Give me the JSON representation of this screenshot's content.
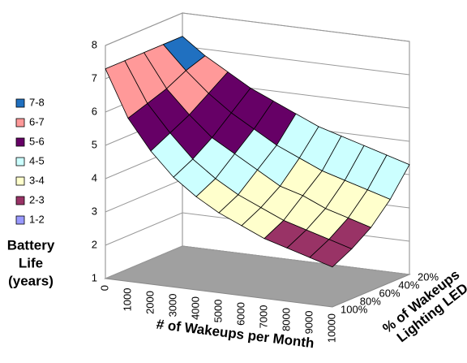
{
  "chart_data": {
    "type": "surface",
    "x_label": "# of Wakeups per Month",
    "depth_label": [
      "% of Wakeups",
      "Lighting LED"
    ],
    "y_label": [
      "Battery",
      "Life",
      "(years)"
    ],
    "categories": [
      "0",
      "1000",
      "2000",
      "3000",
      "4000",
      "5000",
      "6000",
      "7000",
      "8000",
      "9000",
      "10000"
    ],
    "series": [
      {
        "name": "20%",
        "values": [
          7.3,
          6.8,
          6.4,
          6.0,
          5.7,
          5.4,
          5.1,
          4.9,
          4.7,
          4.5,
          4.3
        ]
      },
      {
        "name": "40%",
        "values": [
          7.3,
          6.6,
          6.0,
          5.5,
          5.1,
          4.7,
          4.4,
          4.1,
          3.9,
          3.7,
          3.5
        ]
      },
      {
        "name": "60%",
        "values": [
          7.3,
          6.3,
          5.6,
          5.0,
          4.6,
          4.2,
          3.8,
          3.6,
          3.3,
          3.1,
          2.9
        ]
      },
      {
        "name": "80%",
        "values": [
          7.3,
          6.1,
          5.3,
          4.6,
          4.1,
          3.7,
          3.4,
          3.1,
          2.9,
          2.7,
          2.5
        ]
      },
      {
        "name": "100%",
        "values": [
          7.3,
          5.9,
          5.0,
          4.3,
          3.8,
          3.4,
          3.1,
          2.8,
          2.6,
          2.4,
          2.2
        ]
      }
    ],
    "ylim": [
      1,
      8
    ],
    "yticks": [
      1,
      2,
      3,
      4,
      5,
      6,
      7,
      8
    ],
    "grid": true,
    "bands": [
      {
        "name": "7-8",
        "range": [
          7,
          8
        ],
        "color": "#2070c0"
      },
      {
        "name": "6-7",
        "range": [
          6,
          7
        ],
        "color": "#ff9999"
      },
      {
        "name": "5-6",
        "range": [
          5,
          6
        ],
        "color": "#660066"
      },
      {
        "name": "4-5",
        "range": [
          4,
          5
        ],
        "color": "#ccffff"
      },
      {
        "name": "3-4",
        "range": [
          3,
          4
        ],
        "color": "#ffffcc"
      },
      {
        "name": "2-3",
        "range": [
          2,
          3
        ],
        "color": "#993366"
      },
      {
        "name": "1-2",
        "range": [
          1,
          2
        ],
        "color": "#9999ff"
      }
    ]
  }
}
